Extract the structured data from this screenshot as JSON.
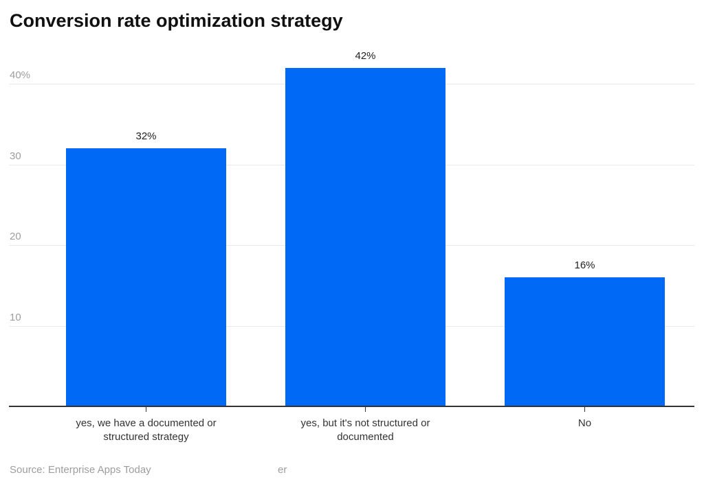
{
  "title": "Conversion rate optimization strategy",
  "footer": {
    "source": "Source: Enterprise Apps Today",
    "watermark_fragment": "er"
  },
  "colors": {
    "bar": "#0069f6",
    "grid": "#e8e8e8",
    "axis": "#333333",
    "title_text": "#101010",
    "ytick_label": "#9d9d9d",
    "value_label": "#222222",
    "category_label": "#333333",
    "source_text": "#9d9d9d",
    "background": "#ffffff"
  },
  "chart_data": {
    "type": "bar",
    "title": "Conversion rate optimization strategy",
    "categories": [
      "yes, we have a documented or\nstructured strategy",
      "yes, but it's not structured or\ndocumented",
      "No"
    ],
    "values": [
      32,
      42,
      16
    ],
    "value_labels": [
      "32%",
      "42%",
      "16%"
    ],
    "yticks": [
      10,
      20,
      30,
      40
    ],
    "ytick_labels": [
      "10",
      "20",
      "30",
      "40%"
    ],
    "ylim": [
      0,
      42.5
    ],
    "xlabel": "",
    "ylabel": "",
    "grid": true,
    "legend": false,
    "source": "Source: Enterprise Apps Today"
  }
}
